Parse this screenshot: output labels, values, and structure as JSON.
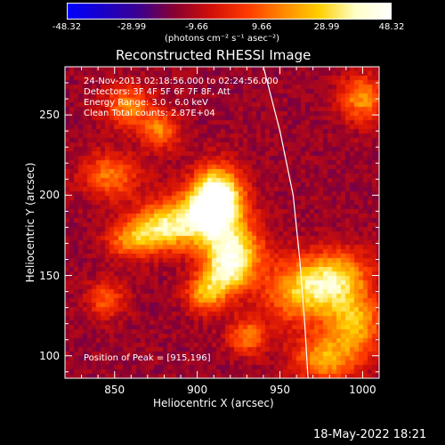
{
  "colorbar": {
    "ticks": [
      "-48.32",
      "-28.99",
      "-9.66",
      "9.66",
      "28.99",
      "48.32"
    ],
    "units": "(photons cm⁻² s⁻¹ asec⁻²)",
    "colors": [
      "#0000ff",
      "#1a00c8",
      "#3c0090",
      "#8a0030",
      "#d11008",
      "#ff3a00",
      "#ff8800",
      "#ffd000",
      "#ffffc8",
      "#ffffff"
    ]
  },
  "chart_data": {
    "type": "heatmap",
    "title": "Reconstructed RHESSI Image",
    "xlabel": "Heliocentric X (arcsec)",
    "ylabel": "Heliocentric Y (arcsec)",
    "xlim": [
      820,
      1010
    ],
    "ylim": [
      86,
      280
    ],
    "x_ticks": [
      850,
      900,
      950,
      1000
    ],
    "y_ticks": [
      100,
      150,
      200,
      250
    ],
    "value_range": [
      -48.32,
      48.32
    ],
    "peak_position": [
      915,
      196
    ],
    "sources": [
      {
        "x": 912,
        "y": 200,
        "value": 48.3,
        "rx": 10,
        "ry": 12
      },
      {
        "x": 905,
        "y": 185,
        "value": 34,
        "rx": 16,
        "ry": 12
      },
      {
        "x": 922,
        "y": 165,
        "value": 30,
        "rx": 12,
        "ry": 10
      },
      {
        "x": 918,
        "y": 150,
        "value": 24,
        "rx": 10,
        "ry": 9
      },
      {
        "x": 905,
        "y": 138,
        "value": 20,
        "rx": 8,
        "ry": 8
      },
      {
        "x": 878,
        "y": 180,
        "value": 22,
        "rx": 12,
        "ry": 10
      },
      {
        "x": 860,
        "y": 172,
        "value": 16,
        "rx": 10,
        "ry": 8
      },
      {
        "x": 848,
        "y": 212,
        "value": 14,
        "rx": 12,
        "ry": 10
      },
      {
        "x": 858,
        "y": 255,
        "value": 16,
        "rx": 10,
        "ry": 9
      },
      {
        "x": 878,
        "y": 240,
        "value": 15,
        "rx": 8,
        "ry": 8
      },
      {
        "x": 962,
        "y": 140,
        "value": 22,
        "rx": 16,
        "ry": 14
      },
      {
        "x": 985,
        "y": 148,
        "value": 24,
        "rx": 14,
        "ry": 12
      },
      {
        "x": 995,
        "y": 120,
        "value": 22,
        "rx": 12,
        "ry": 12
      },
      {
        "x": 978,
        "y": 98,
        "value": 20,
        "rx": 14,
        "ry": 10
      },
      {
        "x": 1000,
        "y": 260,
        "value": 18,
        "rx": 10,
        "ry": 10
      },
      {
        "x": 930,
        "y": 112,
        "value": 14,
        "rx": 8,
        "ry": 8
      },
      {
        "x": 845,
        "y": 135,
        "value": 9,
        "rx": 8,
        "ry": 8
      }
    ],
    "limb_curve": {
      "x": [
        940,
        950,
        958,
        962,
        965,
        967
      ],
      "y": [
        280,
        240,
        200,
        160,
        120,
        86
      ]
    }
  },
  "annotations": {
    "time_range": "24-Nov-2013 02:18:56.000 to 02:24:56.000",
    "detectors": "Detectors: 3F 4F 5F 6F 7F 8F, Att",
    "energy": "Energy Range: 3.0 - 6.0 keV",
    "clean": "Clean    Total counts: 2.87E+04",
    "peak": "Position of Peak = [915,196]"
  },
  "footer": {
    "date": "18-May-2022 18:21"
  }
}
